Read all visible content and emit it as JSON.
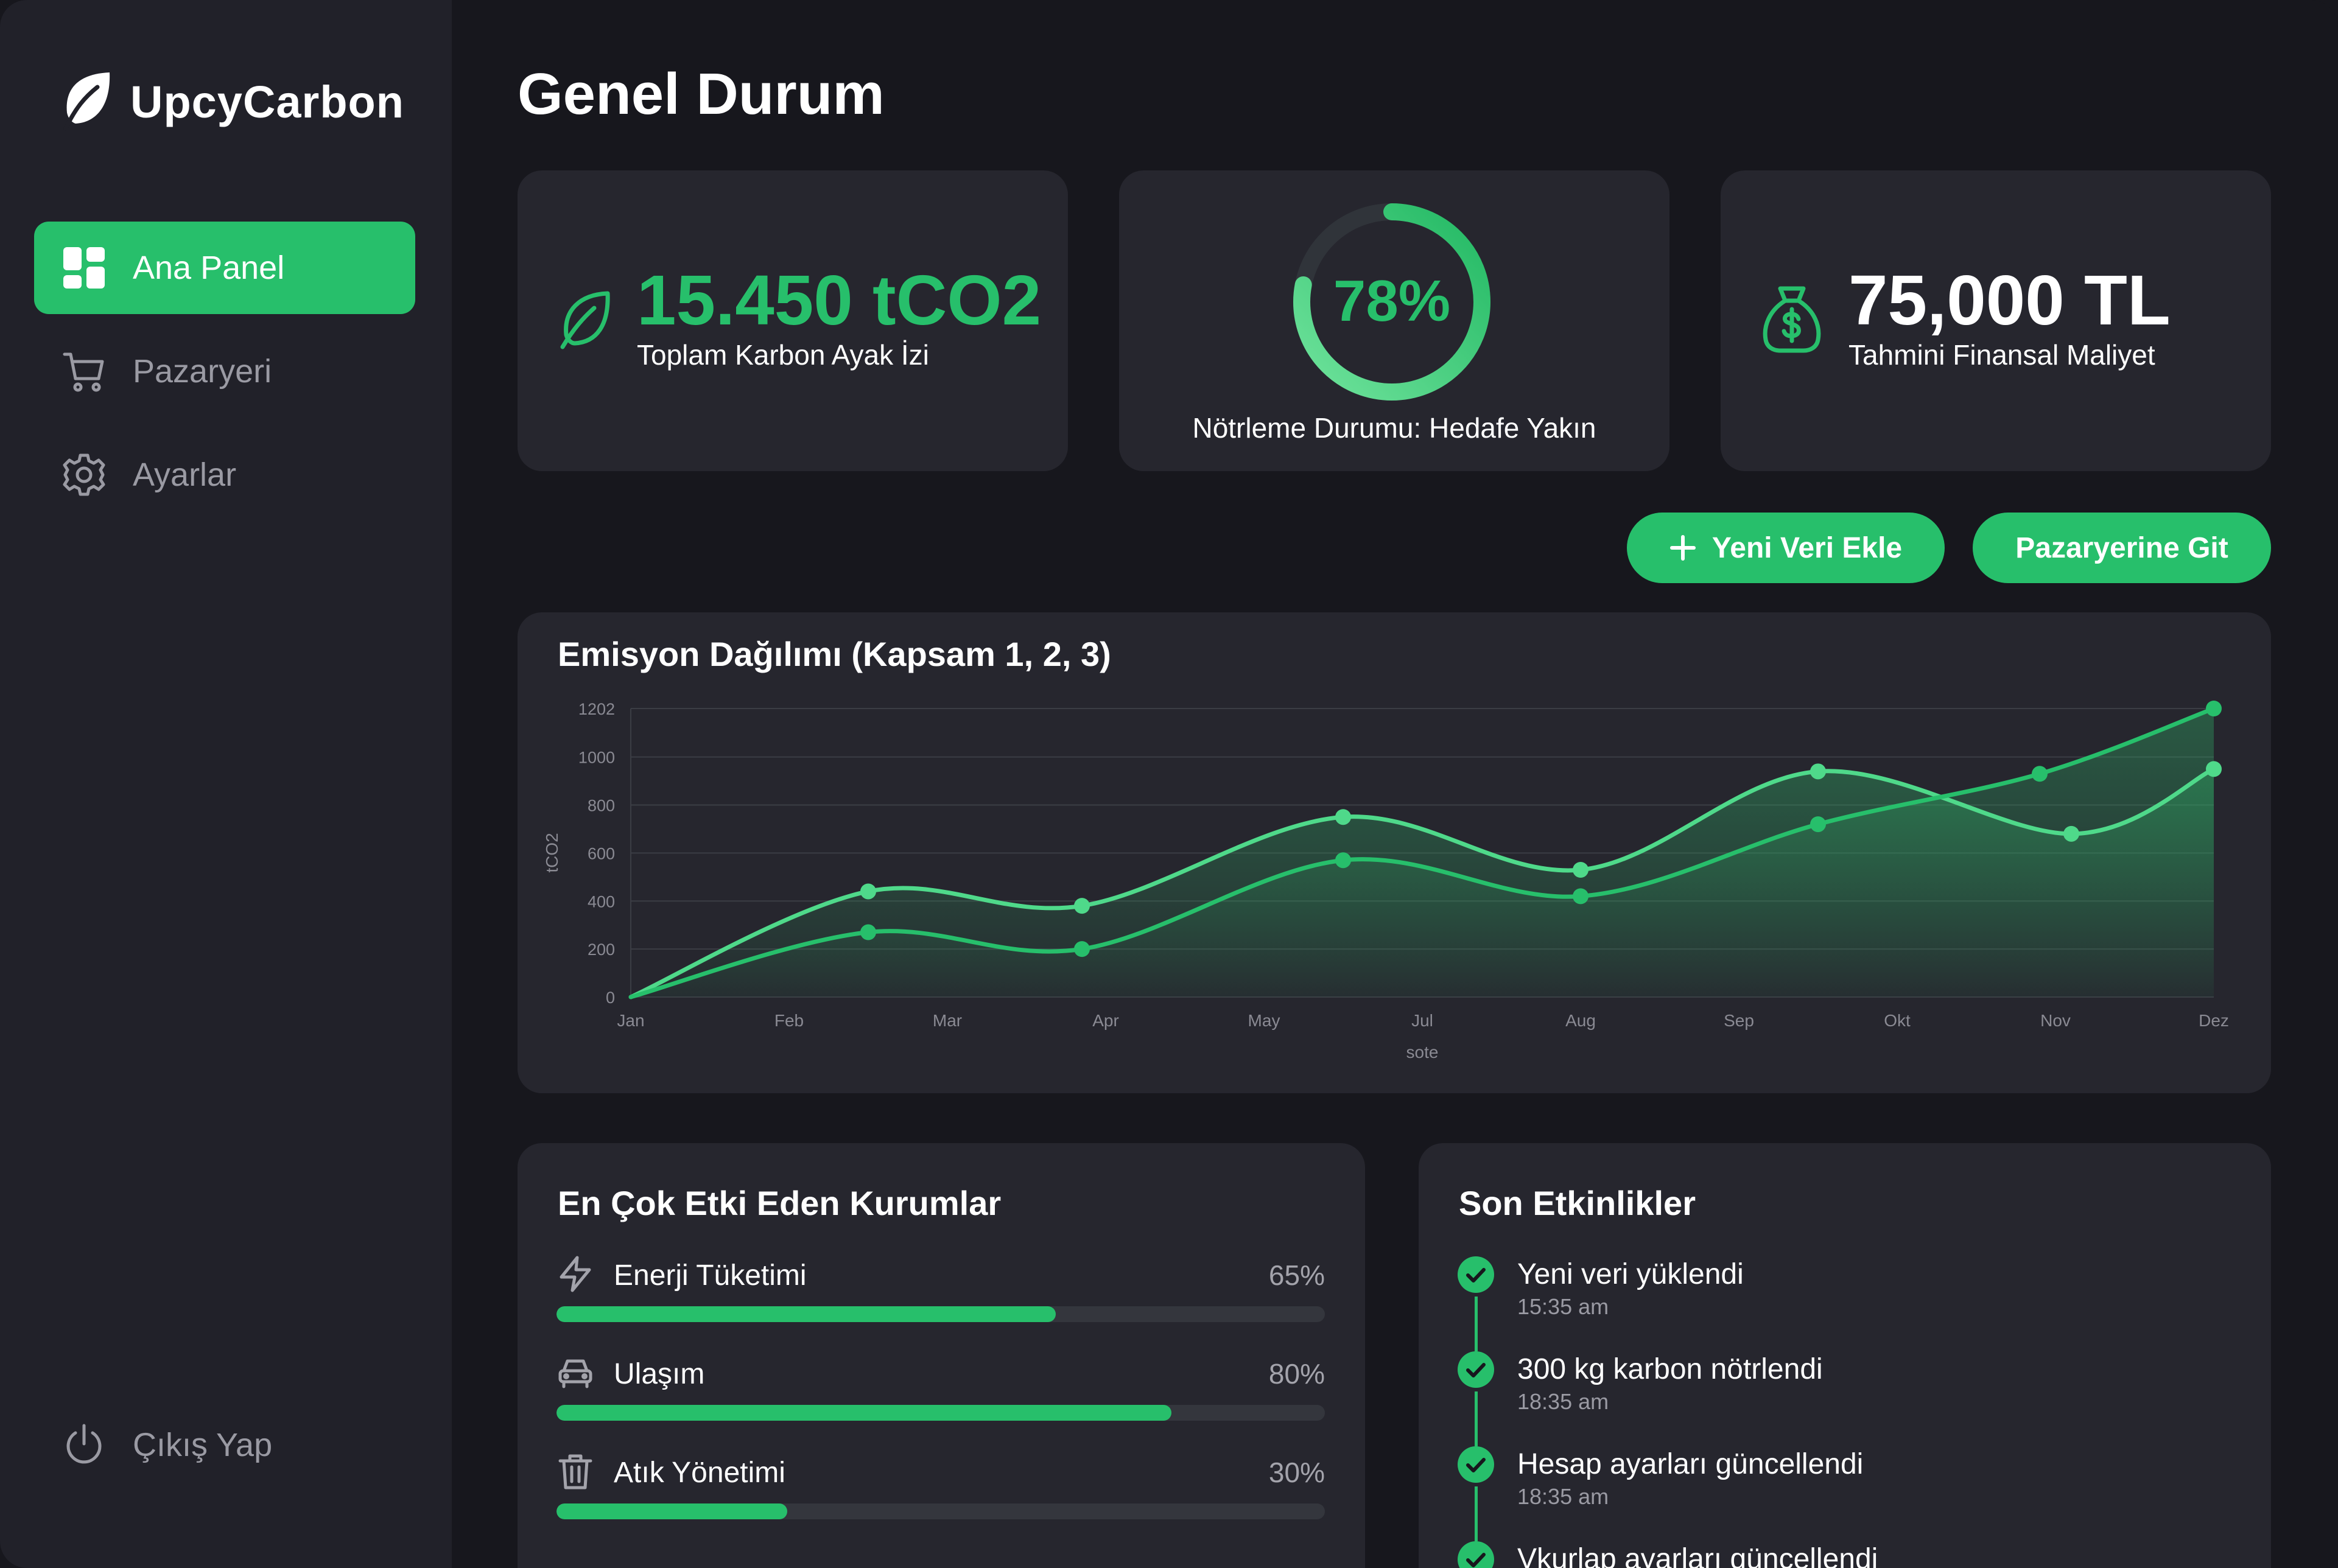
{
  "app": {
    "name": "UpcyCarbon"
  },
  "sidebar": {
    "items": [
      {
        "label": "Ana Panel",
        "icon": "dashboard-icon",
        "active": true
      },
      {
        "label": "Pazaryeri",
        "icon": "cart-icon",
        "active": false
      },
      {
        "label": "Ayarlar",
        "icon": "gear-icon",
        "active": false
      }
    ],
    "logout": {
      "label": "Çıkış Yap",
      "icon": "power-icon"
    }
  },
  "page": {
    "title": "Genel Durum"
  },
  "kpis": {
    "footprint": {
      "value": "15.450 tCO2",
      "label": "Toplam Karbon Ayak İzi",
      "icon": "leaf-icon"
    },
    "neutral": {
      "value": "78%",
      "percent": 78,
      "label": "Nötrleme Durumu: Hedafe Yakın"
    },
    "cost": {
      "value": "75,000 TL",
      "label": "Tahmini Finansal Maliyet",
      "icon": "money-bag-icon"
    }
  },
  "actions": {
    "add": {
      "label": "Yeni Veri Ekle",
      "icon": "plus-icon"
    },
    "market": {
      "label": "Pazaryerine Git"
    }
  },
  "emissions": {
    "title": "Emisyon Dağılımı (Kapsam 1, 2, 3)"
  },
  "chart_data": {
    "type": "area",
    "title": "Emisyon Dağılımı (Kapsam 1, 2, 3)",
    "xlabel": "sote",
    "ylabel": "tCO2",
    "x": [
      "Jan",
      "Feb",
      "Mar",
      "Apr",
      "May",
      "Jul",
      "Aug",
      "Sep",
      "Okt",
      "Nov",
      "Dez"
    ],
    "yticks": [
      "0",
      "200",
      "400",
      "600",
      "800",
      "1000",
      "1202"
    ],
    "ylim": [
      0,
      1202
    ],
    "grid": true,
    "series": [
      {
        "points": [
          [
            0,
            0
          ],
          [
            1.5,
            440
          ],
          [
            2.85,
            380
          ],
          [
            4.5,
            750
          ],
          [
            6,
            530
          ],
          [
            7.5,
            940
          ],
          [
            9.1,
            680
          ],
          [
            10,
            950
          ]
        ]
      },
      {
        "points": [
          [
            0,
            0
          ],
          [
            1.5,
            270
          ],
          [
            2.85,
            200
          ],
          [
            4.5,
            570
          ],
          [
            6,
            420
          ],
          [
            7.5,
            720
          ],
          [
            8.9,
            930
          ],
          [
            10,
            1202
          ]
        ]
      }
    ],
    "colors": {
      "line1": "#4fd98a",
      "line2": "#27bf6b",
      "fill": "#2fb96a"
    }
  },
  "contributors": {
    "title": "En Çok Etki Eden Kurumlar",
    "items": [
      {
        "label": "Enerji Tüketimi",
        "pct": "65%",
        "value": 0.65,
        "icon": "lightning-icon"
      },
      {
        "label": "Ulaşım",
        "pct": "80%",
        "value": 0.8,
        "icon": "car-icon"
      },
      {
        "label": "Atık Yönetimi",
        "pct": "30%",
        "value": 0.3,
        "icon": "trash-icon"
      }
    ]
  },
  "activities": {
    "title": "Son Etkinlikler",
    "items": [
      {
        "title": "Yeni veri yüklendi",
        "time": "15:35 am"
      },
      {
        "title": "300 kg karbon nötrlendi",
        "time": "18:35 am"
      },
      {
        "title": "Hesap ayarları güncellendi",
        "time": "18:35 am"
      },
      {
        "title": "Vkurlap ayarları güncellendi",
        "time": ""
      }
    ]
  },
  "colors": {
    "accent": "#27bf6b",
    "background": "#17171d",
    "sidebar": "#212129",
    "card": "#26262e"
  }
}
